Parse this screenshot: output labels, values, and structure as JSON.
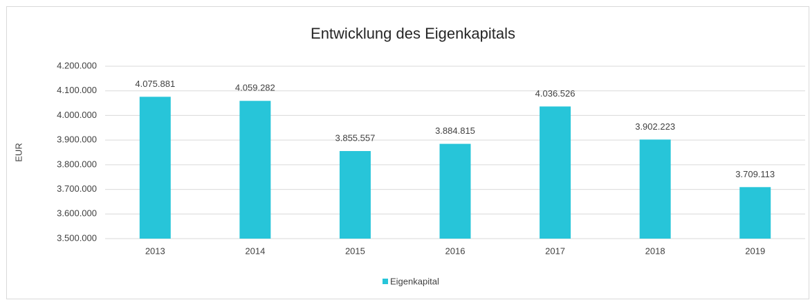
{
  "chart_data": {
    "type": "bar",
    "title": "Entwicklung des Eigenkapitals",
    "y_label": "EUR",
    "categories": [
      "2013",
      "2014",
      "2015",
      "2016",
      "2017",
      "2018",
      "2019"
    ],
    "series": [
      {
        "name": "Eigenkapital",
        "color": "#27c5d9",
        "values": [
          4075881,
          4059282,
          3855557,
          3884815,
          4036526,
          3902223,
          3709113
        ],
        "value_labels": [
          "4.075.881",
          "4.059.282",
          "3.855.557",
          "3.884.815",
          "4.036.526",
          "3.902.223",
          "3.709.113"
        ]
      }
    ],
    "ylim": [
      3500000,
      4200000
    ],
    "yticks": [
      {
        "value": 3500000,
        "label": "3.500.000"
      },
      {
        "value": 3600000,
        "label": "3.600.000"
      },
      {
        "value": 3700000,
        "label": "3.700.000"
      },
      {
        "value": 3800000,
        "label": "3.800.000"
      },
      {
        "value": 3900000,
        "label": "3.900.000"
      },
      {
        "value": 4000000,
        "label": "4.000.000"
      },
      {
        "value": 4100000,
        "label": "4.100.000"
      },
      {
        "value": 4200000,
        "label": "4.200.000"
      }
    ],
    "grid": true,
    "legend": "bottom"
  }
}
